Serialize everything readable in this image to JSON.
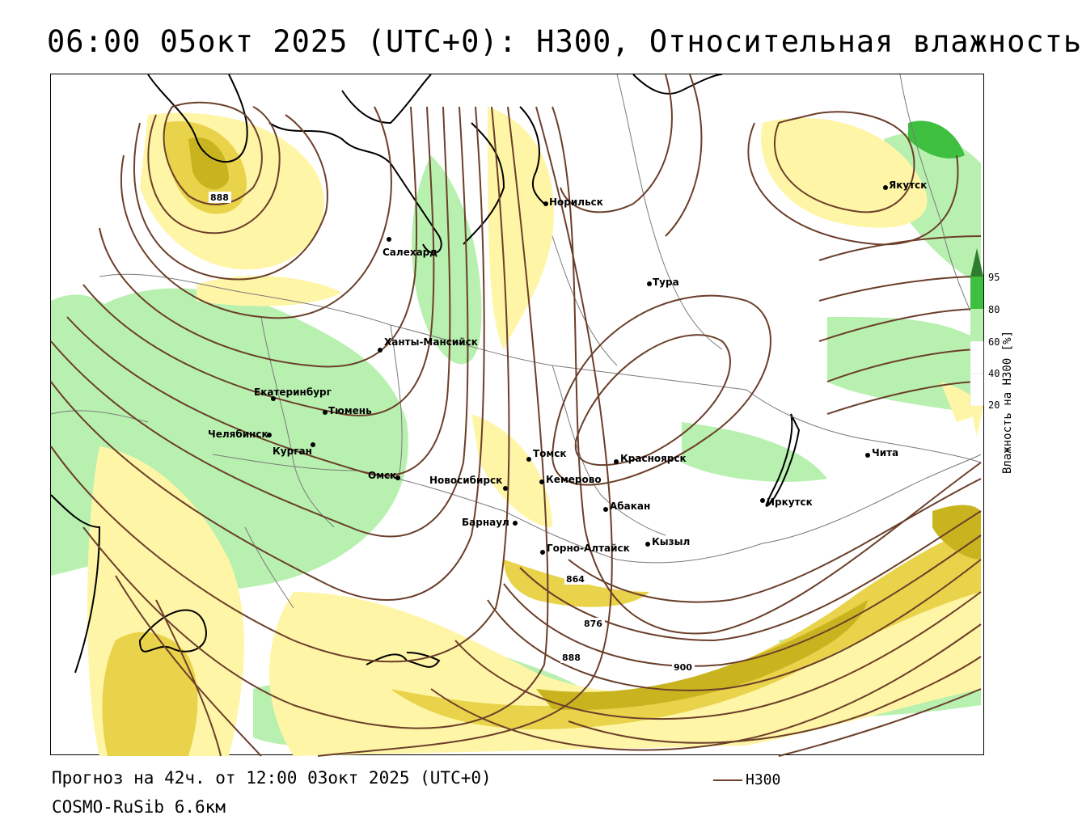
{
  "header": {
    "title": "06:00 05окт 2025 (UTC+0): H300, Относительная влажность"
  },
  "footer": {
    "forecast": "Прогноз на 42ч. от 12:00 03окт 2025 (UTC+0)",
    "model": "COSMO-RuSib 6.6км"
  },
  "line_legend": {
    "label": "H300",
    "color": "#6b3f2a"
  },
  "colorbar": {
    "title": "Влажность на H300 [%]",
    "ticks": [
      "95",
      "80",
      "60",
      "40",
      "20"
    ],
    "colors": {
      "95": "#2e7d2e",
      "80": "#3fbf3f",
      "60": "#b8f0b0",
      "40": "#ffffff",
      "20": "#fff5a6",
      "low": "#e8d34a",
      "lowest": "#c9b420"
    }
  },
  "map": {
    "cities": [
      {
        "name": "Якутск"
      },
      {
        "name": "Норильск"
      },
      {
        "name": "Салехард"
      },
      {
        "name": "Тура"
      },
      {
        "name": "Ханты-Мансийск"
      },
      {
        "name": "Екатеринбург"
      },
      {
        "name": "Тюмень"
      },
      {
        "name": "Челябинск"
      },
      {
        "name": "Курган"
      },
      {
        "name": "Омск"
      },
      {
        "name": "Новосибирск"
      },
      {
        "name": "Томск"
      },
      {
        "name": "Кемерово"
      },
      {
        "name": "Красноярск"
      },
      {
        "name": "Абакан"
      },
      {
        "name": "Барнаул"
      },
      {
        "name": "Горно-Алтайск"
      },
      {
        "name": "Кызыл"
      },
      {
        "name": "Иркутск"
      },
      {
        "name": "Чита"
      }
    ],
    "contour_labels": [
      "888",
      "864",
      "876",
      "888",
      "900"
    ]
  }
}
